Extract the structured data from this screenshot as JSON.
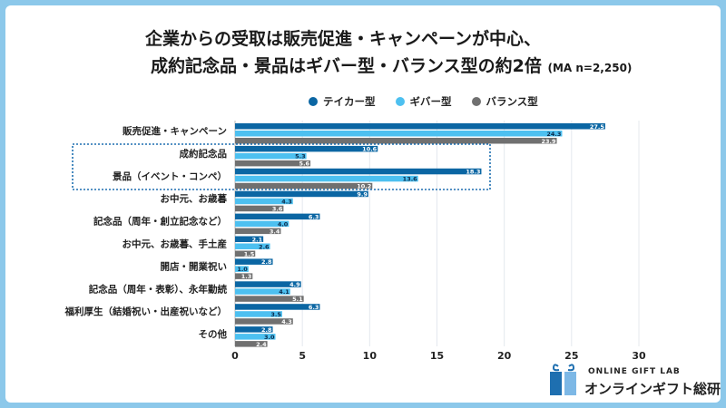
{
  "title_line1": "企業からの受取は販売促進・キャンペーンが中心、",
  "title_line2": "成約記念品・景品はギバー型・バランス型の約2倍",
  "title_note": "(MA n=2,250)",
  "brand": {
    "en": "ONLINE GIFT LAB",
    "jp": "オンラインギフト総研"
  },
  "chart_data": {
    "type": "bar",
    "orientation": "horizontal",
    "categories": [
      "販売促進・キャンペーン",
      "成約記念品",
      "景品（イベント・コンペ）",
      "お中元、お歳暮",
      "記念品（周年・創立記念など）",
      "お中元、お歳暮、手土産",
      "開店・開業祝い",
      "記念品（周年・表彰）、永年勤続",
      "福利厚生（結婚祝い・出産祝いなど）",
      "その他"
    ],
    "series": [
      {
        "name": "テイカー型",
        "color": "#0b66a3",
        "values": [
          27.5,
          10.6,
          18.3,
          9.9,
          6.3,
          2.1,
          2.8,
          4.9,
          6.3,
          2.8
        ]
      },
      {
        "name": "ギバー型",
        "color": "#4dc0f0",
        "values": [
          24.3,
          5.3,
          13.6,
          4.3,
          4.0,
          2.6,
          1.0,
          4.1,
          3.5,
          3.0
        ]
      },
      {
        "name": "バランス型",
        "color": "#707070",
        "values": [
          23.9,
          5.6,
          10.2,
          3.6,
          3.4,
          1.5,
          1.3,
          5.1,
          4.3,
          2.4
        ]
      }
    ],
    "xlim": [
      0,
      30
    ],
    "xticks": [
      "0",
      "5",
      "10",
      "15",
      "20",
      "25",
      "30"
    ],
    "grid": true,
    "legend": "top",
    "highlighted_categories": [
      "成約記念品",
      "景品（イベント・コンペ）"
    ]
  }
}
